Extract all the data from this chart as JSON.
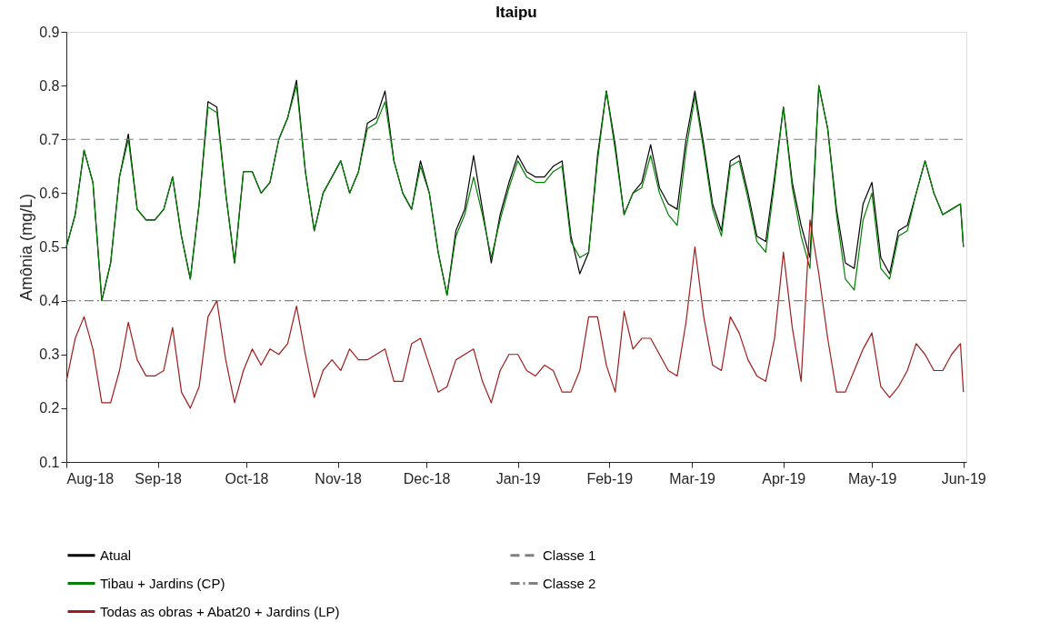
{
  "chart_data": {
    "type": "line",
    "title": "Itaipu",
    "ylabel": "Amônia (mg/L)",
    "x": [
      "2018-08-01",
      "2018-08-04",
      "2018-08-07",
      "2018-08-10",
      "2018-08-13",
      "2018-08-16",
      "2018-08-19",
      "2018-08-22",
      "2018-08-25",
      "2018-08-28",
      "2018-08-31",
      "2018-09-03",
      "2018-09-06",
      "2018-09-09",
      "2018-09-12",
      "2018-09-15",
      "2018-09-18",
      "2018-09-21",
      "2018-09-24",
      "2018-09-27",
      "2018-09-30",
      "2018-10-03",
      "2018-10-06",
      "2018-10-09",
      "2018-10-12",
      "2018-10-15",
      "2018-10-18",
      "2018-10-21",
      "2018-10-24",
      "2018-10-27",
      "2018-10-30",
      "2018-11-02",
      "2018-11-05",
      "2018-11-08",
      "2018-11-11",
      "2018-11-14",
      "2018-11-17",
      "2018-11-20",
      "2018-11-23",
      "2018-11-26",
      "2018-11-29",
      "2018-12-02",
      "2018-12-05",
      "2018-12-08",
      "2018-12-11",
      "2018-12-14",
      "2018-12-17",
      "2018-12-20",
      "2018-12-23",
      "2018-12-26",
      "2018-12-29",
      "2019-01-01",
      "2019-01-04",
      "2019-01-07",
      "2019-01-10",
      "2019-01-13",
      "2019-01-16",
      "2019-01-19",
      "2019-01-22",
      "2019-01-25",
      "2019-01-28",
      "2019-01-31",
      "2019-02-03",
      "2019-02-06",
      "2019-02-09",
      "2019-02-12",
      "2019-02-15",
      "2019-02-18",
      "2019-02-21",
      "2019-02-24",
      "2019-02-27",
      "2019-03-02",
      "2019-03-05",
      "2019-03-08",
      "2019-03-11",
      "2019-03-14",
      "2019-03-17",
      "2019-03-20",
      "2019-03-23",
      "2019-03-26",
      "2019-03-29",
      "2019-04-01",
      "2019-04-04",
      "2019-04-07",
      "2019-04-10",
      "2019-04-13",
      "2019-04-16",
      "2019-04-19",
      "2019-04-22",
      "2019-04-25",
      "2019-04-28",
      "2019-05-01",
      "2019-05-04",
      "2019-05-07",
      "2019-05-10",
      "2019-05-13",
      "2019-05-16",
      "2019-05-19",
      "2019-05-22",
      "2019-05-25",
      "2019-05-28",
      "2019-05-31",
      "2019-06-01"
    ],
    "series": [
      {
        "name": "Atual",
        "color": "#000000",
        "values": [
          0.5,
          0.56,
          0.68,
          0.62,
          0.4,
          0.47,
          0.63,
          0.71,
          0.57,
          0.55,
          0.55,
          0.57,
          0.63,
          0.52,
          0.44,
          0.58,
          0.77,
          0.76,
          0.6,
          0.47,
          0.64,
          0.64,
          0.6,
          0.62,
          0.7,
          0.74,
          0.81,
          0.64,
          0.53,
          0.6,
          0.63,
          0.66,
          0.6,
          0.64,
          0.73,
          0.74,
          0.79,
          0.66,
          0.6,
          0.57,
          0.66,
          0.6,
          0.49,
          0.41,
          0.53,
          0.57,
          0.67,
          0.57,
          0.47,
          0.56,
          0.62,
          0.67,
          0.64,
          0.63,
          0.63,
          0.65,
          0.66,
          0.52,
          0.45,
          0.49,
          0.67,
          0.79,
          0.69,
          0.56,
          0.6,
          0.62,
          0.69,
          0.61,
          0.58,
          0.57,
          0.7,
          0.79,
          0.69,
          0.58,
          0.53,
          0.66,
          0.67,
          0.6,
          0.52,
          0.51,
          0.63,
          0.76,
          0.62,
          0.54,
          0.48,
          0.8,
          0.72,
          0.57,
          0.47,
          0.46,
          0.58,
          0.62,
          0.48,
          0.45,
          0.53,
          0.54,
          0.6,
          0.66,
          0.6,
          0.56,
          0.57,
          0.58,
          0.5
        ]
      },
      {
        "name": "Tibau + Jardins (CP)",
        "color": "#008000",
        "values": [
          0.5,
          0.56,
          0.68,
          0.62,
          0.4,
          0.47,
          0.63,
          0.7,
          0.57,
          0.55,
          0.55,
          0.57,
          0.63,
          0.52,
          0.44,
          0.58,
          0.76,
          0.75,
          0.6,
          0.47,
          0.64,
          0.64,
          0.6,
          0.62,
          0.7,
          0.74,
          0.8,
          0.64,
          0.53,
          0.6,
          0.63,
          0.66,
          0.6,
          0.64,
          0.72,
          0.73,
          0.77,
          0.66,
          0.6,
          0.57,
          0.65,
          0.6,
          0.49,
          0.41,
          0.52,
          0.56,
          0.63,
          0.56,
          0.48,
          0.55,
          0.61,
          0.66,
          0.63,
          0.62,
          0.62,
          0.64,
          0.65,
          0.51,
          0.48,
          0.49,
          0.66,
          0.79,
          0.68,
          0.56,
          0.6,
          0.61,
          0.67,
          0.6,
          0.56,
          0.54,
          0.68,
          0.78,
          0.68,
          0.57,
          0.52,
          0.65,
          0.66,
          0.59,
          0.51,
          0.49,
          0.62,
          0.76,
          0.61,
          0.52,
          0.46,
          0.8,
          0.72,
          0.56,
          0.44,
          0.42,
          0.55,
          0.6,
          0.46,
          0.44,
          0.52,
          0.53,
          0.6,
          0.66,
          0.6,
          0.56,
          0.57,
          0.58,
          0.5
        ]
      },
      {
        "name": "Todas as obras + Abat20 + Jardins (LP)",
        "color": "#a01c1c",
        "values": [
          0.25,
          0.33,
          0.37,
          0.31,
          0.21,
          0.21,
          0.27,
          0.36,
          0.29,
          0.26,
          0.26,
          0.27,
          0.35,
          0.23,
          0.2,
          0.24,
          0.37,
          0.4,
          0.29,
          0.21,
          0.27,
          0.31,
          0.28,
          0.31,
          0.3,
          0.32,
          0.39,
          0.3,
          0.22,
          0.27,
          0.29,
          0.27,
          0.31,
          0.29,
          0.29,
          0.3,
          0.31,
          0.25,
          0.25,
          0.32,
          0.33,
          0.28,
          0.23,
          0.24,
          0.29,
          0.3,
          0.31,
          0.25,
          0.21,
          0.27,
          0.3,
          0.3,
          0.27,
          0.26,
          0.28,
          0.27,
          0.23,
          0.23,
          0.27,
          0.37,
          0.37,
          0.28,
          0.23,
          0.38,
          0.31,
          0.33,
          0.33,
          0.3,
          0.27,
          0.26,
          0.36,
          0.5,
          0.37,
          0.28,
          0.27,
          0.37,
          0.34,
          0.29,
          0.26,
          0.25,
          0.33,
          0.49,
          0.35,
          0.25,
          0.55,
          0.45,
          0.33,
          0.23,
          0.23,
          0.27,
          0.31,
          0.34,
          0.24,
          0.22,
          0.24,
          0.27,
          0.32,
          0.3,
          0.27,
          0.27,
          0.3,
          0.32,
          0.23
        ]
      }
    ],
    "ref_lines": [
      {
        "axis": "y",
        "value": 0.7,
        "label": "Classe 1",
        "color": "#808080",
        "line_style": "dashed"
      },
      {
        "axis": "y",
        "value": 0.4,
        "label": "Classe 2",
        "color": "#808080",
        "line_style": "dashdot"
      }
    ],
    "xlim": [
      "2018-08-01",
      "2019-06-02"
    ],
    "xticks": [
      {
        "value": "2018-08-01",
        "label": "Aug-18"
      },
      {
        "value": "2018-09-01",
        "label": "Sep-18"
      },
      {
        "value": "2018-10-01",
        "label": "Oct-18"
      },
      {
        "value": "2018-11-01",
        "label": "Nov-18"
      },
      {
        "value": "2018-12-01",
        "label": "Dec-18"
      },
      {
        "value": "2019-01-01",
        "label": "Jan-19"
      },
      {
        "value": "2019-02-01",
        "label": "Feb-19"
      },
      {
        "value": "2019-03-01",
        "label": "Mar-19"
      },
      {
        "value": "2019-04-01",
        "label": "Apr-19"
      },
      {
        "value": "2019-05-01",
        "label": "May-19"
      },
      {
        "value": "2019-06-01",
        "label": "Jun-19"
      }
    ],
    "ylim": [
      0.1,
      0.9
    ],
    "yticks": [
      0.1,
      0.2,
      0.3,
      0.4,
      0.5,
      0.6,
      0.7,
      0.8,
      0.9
    ],
    "grid": false,
    "legend": "bottom",
    "marker": "none",
    "line_style": "solid"
  }
}
